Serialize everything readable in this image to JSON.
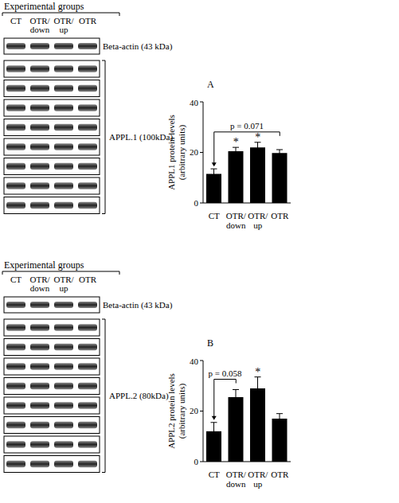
{
  "chart_data": [
    {
      "type": "bar",
      "title": "A",
      "ylabel": "APPL1 protein levels\n(arbitrary units)",
      "categories": [
        "CT",
        "OTR/\ndown",
        "OTR/\nup",
        "OTR"
      ],
      "values": [
        11.5,
        20.5,
        22,
        19.8
      ],
      "errors": [
        2,
        1.5,
        2,
        1.3
      ],
      "color": "#000000",
      "ylim": [
        0,
        40
      ],
      "yticks": [
        0,
        20,
        40
      ],
      "grid": false,
      "annotations": [
        {
          "category": "OTR/\ndown",
          "text": "*"
        },
        {
          "category": "OTR/\nup",
          "text": "*"
        }
      ],
      "brackets": [
        {
          "from": "CT",
          "to": "OTR",
          "text": "p = 0.071"
        }
      ]
    },
    {
      "type": "bar",
      "title": "B",
      "ylabel": "APPL2 protein levels\n(arbitrary units)",
      "categories": [
        "CT",
        "OTR/\ndown",
        "OTR/\nup",
        "OTR"
      ],
      "values": [
        12,
        25.5,
        29,
        17
      ],
      "errors": [
        3.5,
        3,
        4.5,
        2
      ],
      "color": "#000000",
      "ylim": [
        0,
        40
      ],
      "yticks": [
        0,
        20,
        40
      ],
      "grid": false,
      "annotations": [
        {
          "category": "OTR/\nup",
          "text": "*"
        }
      ],
      "brackets": [
        {
          "from": "CT",
          "to": "OTR/\ndown",
          "text": "p = 0.058"
        }
      ]
    }
  ],
  "blots": [
    {
      "header": "Experimental groups",
      "lanes": [
        "CT",
        "OTR/\ndown",
        "OTR/\nup",
        "OTR"
      ],
      "loading_control": "Beta-actin (43 kDa)",
      "target": "APPL.1 (100kDa)",
      "target_strips": 8
    },
    {
      "header": "Experimental groups",
      "lanes": [
        "CT",
        "OTR/\ndown",
        "OTR/\nup",
        "OTR"
      ],
      "loading_control": "Beta-actin (43 kDa)",
      "target": "APPL.2 (80kDa)",
      "target_strips": 8
    }
  ]
}
